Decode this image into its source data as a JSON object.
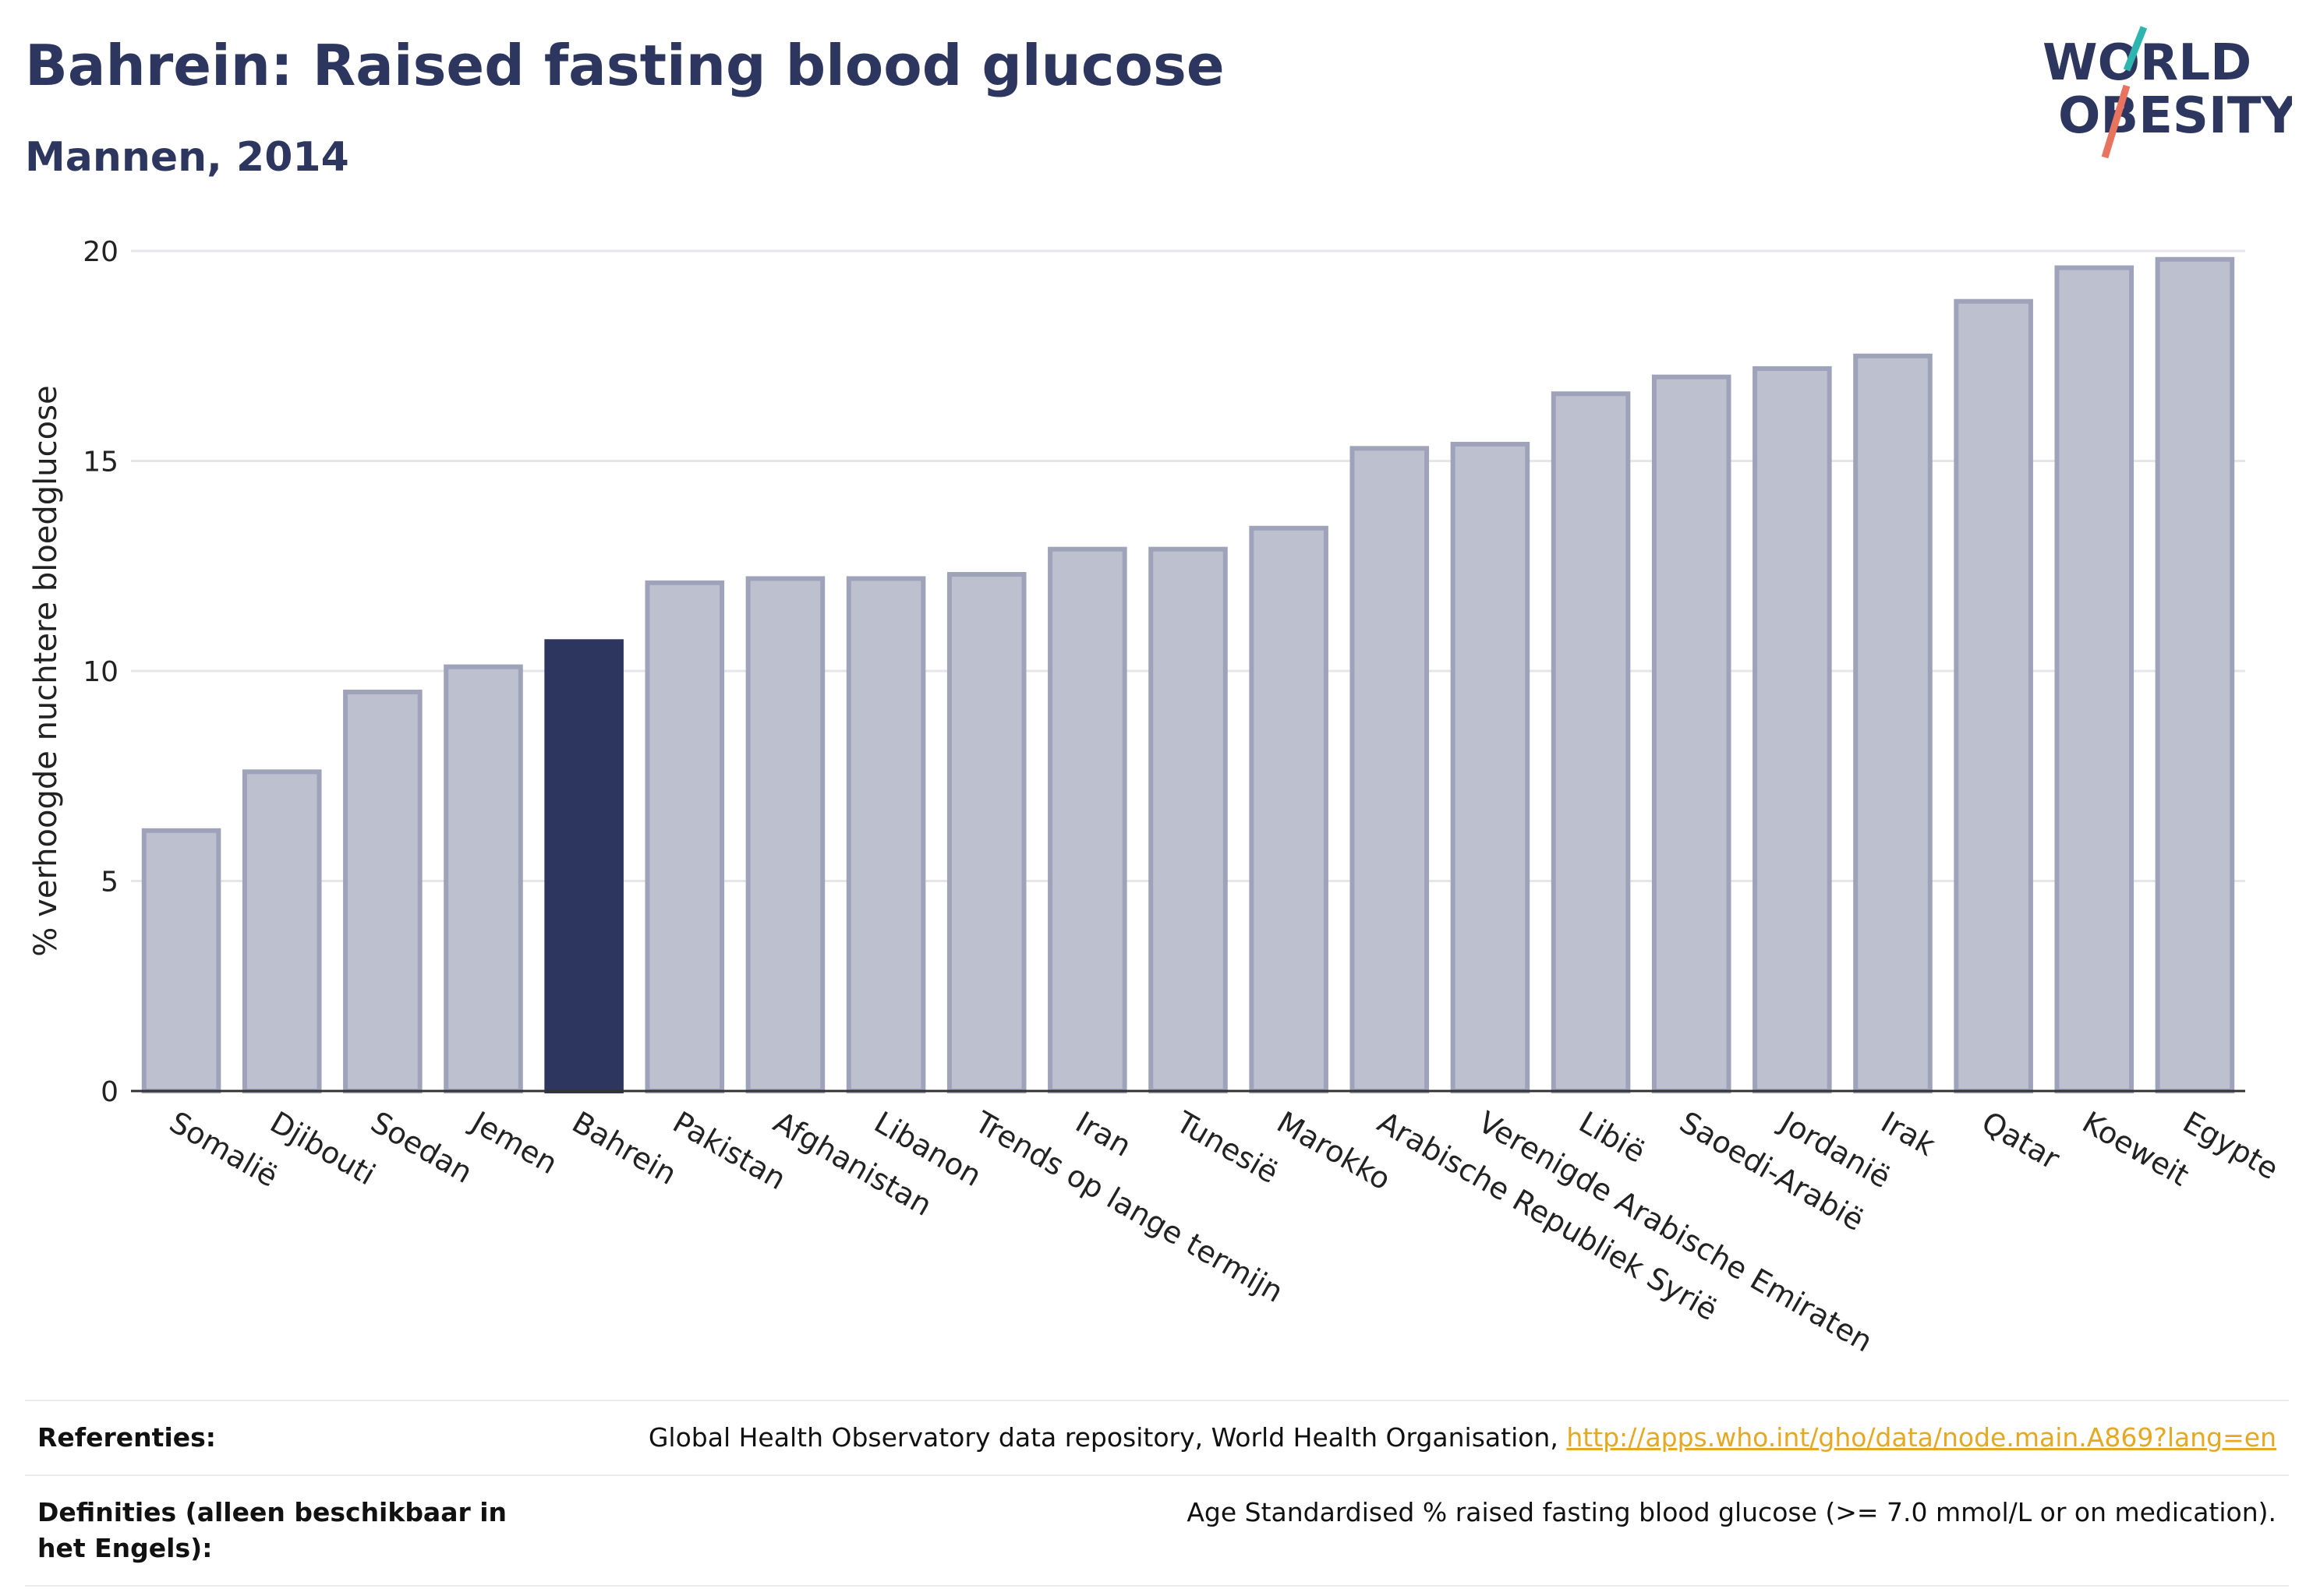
{
  "header": {
    "title": "Bahrein: Raised fasting blood glucose",
    "subtitle": "Mannen, 2014"
  },
  "logo": {
    "line1": "WORLD",
    "line2": "OBESITY",
    "accent_colors": [
      "#2fb5b0",
      "#e8735e"
    ],
    "text_color": "#2c365f"
  },
  "chart_data": {
    "type": "bar",
    "title": "Bahrein: Raised fasting blood glucose",
    "subtitle": "Mannen, 2014",
    "xlabel": "",
    "ylabel": "% verhoogde nuchtere bloedglucose",
    "ylim": [
      0,
      20
    ],
    "yticks": [
      0,
      5,
      10,
      15,
      20
    ],
    "grid": true,
    "highlight": "Bahrein",
    "colors": {
      "bar": "#bdc0cf",
      "bar_border": "#9ea3ba",
      "highlight": "#2c365f"
    },
    "categories": [
      "Somalië",
      "Djibouti",
      "Soedan",
      "Jemen",
      "Bahrein",
      "Pakistan",
      "Afghanistan",
      "Libanon",
      "Trends op lange termijn",
      "Iran",
      "Tunesië",
      "Marokko",
      "Arabische Republiek Syrië",
      "Verenigde Arabische Emiraten",
      "Libië",
      "Saoedi-Arabië",
      "Jordanië",
      "Irak",
      "Qatar",
      "Koeweit",
      "Egypte"
    ],
    "values": [
      6.2,
      7.6,
      9.5,
      10.1,
      10.7,
      12.1,
      12.2,
      12.2,
      12.3,
      12.9,
      12.9,
      13.4,
      15.3,
      15.4,
      16.6,
      17.0,
      17.2,
      17.5,
      18.8,
      19.6,
      19.8
    ]
  },
  "footer": {
    "references_label": "Referenties:",
    "references_text": "Global Health Observatory data repository, World Health Organisation,",
    "references_link": "http://apps.who.int/gho/data/node.main.A869?lang=en",
    "definitions_label": "Definities (alleen beschikbaar in het Engels):",
    "definitions_text": "Age Standardised % raised fasting blood glucose (>= 7.0 mmol/L or on medication)."
  }
}
